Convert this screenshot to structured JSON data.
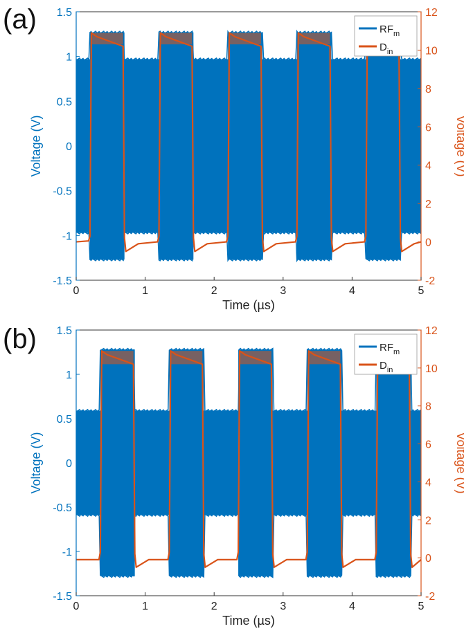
{
  "colors": {
    "rf": "#0072BD",
    "din": "#D95319",
    "axis": "#333333"
  },
  "chart_data": [
    {
      "panel_label": "(a)",
      "type": "line",
      "xlabel": "Time (µs)",
      "ylabel_left": "Voltage (V)",
      "ylabel_right": "Voltage (V)",
      "xlim": [
        0,
        5
      ],
      "ylim_left": [
        -1.5,
        1.5
      ],
      "ylim_right": [
        -2,
        12
      ],
      "xticks": [
        "0",
        "1",
        "2",
        "3",
        "4",
        "5"
      ],
      "yticks_left": [
        "-1.5",
        "-1",
        "-0.5",
        "0",
        "0.5",
        "1",
        "1.5"
      ],
      "yticks_right": [
        "-2",
        "0",
        "2",
        "4",
        "6",
        "8",
        "10",
        "12"
      ],
      "legend": [
        {
          "base": "RF",
          "sub": "m"
        },
        {
          "base": "D",
          "sub": "in"
        }
      ],
      "legend_position": "top-right",
      "pulse_starts_us": [
        0.2,
        1.2,
        2.2,
        3.2,
        4.2
      ],
      "pulse_width_us": 0.5,
      "series": [
        {
          "axis": "left",
          "envelope_off": 0.97,
          "envelope_on": 1.27
        },
        {
          "axis": "right",
          "low_level": 0.0,
          "high_level": 10.3,
          "overshoot": 10.9,
          "points": [
            [
              0,
              0
            ],
            [
              0.18,
              0.05
            ],
            [
              0.2,
              0.3
            ],
            [
              0.22,
              10.9
            ],
            [
              0.3,
              10.7
            ],
            [
              0.68,
              10.2
            ],
            [
              0.7,
              0.2
            ],
            [
              0.72,
              -0.5
            ],
            [
              0.9,
              -0.1
            ],
            [
              1.18,
              0.0
            ],
            [
              1.2,
              0.3
            ],
            [
              1.22,
              10.9
            ],
            [
              1.3,
              10.7
            ],
            [
              1.68,
              10.2
            ],
            [
              1.7,
              0.2
            ],
            [
              1.72,
              -0.5
            ],
            [
              1.9,
              -0.1
            ],
            [
              2.18,
              0.0
            ],
            [
              2.2,
              0.3
            ],
            [
              2.22,
              10.9
            ],
            [
              2.3,
              10.7
            ],
            [
              2.68,
              10.2
            ],
            [
              2.7,
              0.2
            ],
            [
              2.72,
              -0.5
            ],
            [
              2.9,
              -0.1
            ],
            [
              3.18,
              0.0
            ],
            [
              3.2,
              0.3
            ],
            [
              3.22,
              10.9
            ],
            [
              3.3,
              10.7
            ],
            [
              3.68,
              10.2
            ],
            [
              3.7,
              0.2
            ],
            [
              3.72,
              -0.5
            ],
            [
              3.9,
              -0.1
            ],
            [
              4.18,
              0.0
            ],
            [
              4.2,
              0.3
            ],
            [
              4.22,
              10.7
            ],
            [
              4.3,
              10.5
            ],
            [
              4.68,
              10.2
            ],
            [
              4.7,
              0.2
            ],
            [
              4.72,
              -0.5
            ],
            [
              4.9,
              -0.1
            ],
            [
              5.0,
              0.0
            ]
          ]
        }
      ]
    },
    {
      "panel_label": "(b)",
      "type": "line",
      "xlabel": "Time (µs)",
      "ylabel_left": "Voltage (V)",
      "ylabel_right": "Voltage (V)",
      "xlim": [
        0,
        5
      ],
      "ylim_left": [
        -1.5,
        1.5
      ],
      "ylim_right": [
        -2,
        12
      ],
      "xticks": [
        "0",
        "1",
        "2",
        "3",
        "4",
        "5"
      ],
      "yticks_left": [
        "-1.5",
        "-1",
        "-0.5",
        "0",
        "0.5",
        "1",
        "1.5"
      ],
      "yticks_right": [
        "-2",
        "0",
        "2",
        "4",
        "6",
        "8",
        "10",
        "12"
      ],
      "legend": [
        {
          "base": "RF",
          "sub": "m"
        },
        {
          "base": "D",
          "sub": "in"
        }
      ],
      "legend_position": "top-right",
      "pulse_starts_us": [
        0.35,
        1.35,
        2.35,
        3.35,
        4.35
      ],
      "pulse_width_us": 0.5,
      "series": [
        {
          "axis": "left",
          "envelope_off": 0.59,
          "envelope_on": 1.28
        },
        {
          "axis": "right",
          "low_level": 0.0,
          "high_level": 10.2,
          "overshoot": 10.9,
          "points": [
            [
              0,
              -0.1
            ],
            [
              0.33,
              -0.1
            ],
            [
              0.35,
              0.3
            ],
            [
              0.37,
              10.9
            ],
            [
              0.45,
              10.7
            ],
            [
              0.83,
              10.2
            ],
            [
              0.85,
              0.2
            ],
            [
              0.87,
              -0.5
            ],
            [
              1.05,
              -0.1
            ],
            [
              1.33,
              -0.1
            ],
            [
              1.35,
              0.3
            ],
            [
              1.37,
              10.9
            ],
            [
              1.45,
              10.7
            ],
            [
              1.83,
              10.2
            ],
            [
              1.85,
              0.2
            ],
            [
              1.87,
              -0.5
            ],
            [
              2.05,
              -0.1
            ],
            [
              2.33,
              -0.1
            ],
            [
              2.35,
              0.3
            ],
            [
              2.37,
              10.9
            ],
            [
              2.45,
              10.7
            ],
            [
              2.83,
              10.2
            ],
            [
              2.85,
              0.2
            ],
            [
              2.87,
              -0.5
            ],
            [
              3.05,
              -0.1
            ],
            [
              3.33,
              -0.1
            ],
            [
              3.35,
              0.3
            ],
            [
              3.37,
              10.9
            ],
            [
              3.45,
              10.7
            ],
            [
              3.83,
              10.2
            ],
            [
              3.85,
              0.2
            ],
            [
              3.87,
              -0.5
            ],
            [
              4.05,
              -0.1
            ],
            [
              4.33,
              -0.1
            ],
            [
              4.35,
              0.3
            ],
            [
              4.37,
              10.4
            ],
            [
              4.45,
              10.3
            ],
            [
              4.83,
              10.2
            ],
            [
              4.85,
              0.2
            ],
            [
              4.87,
              -0.5
            ],
            [
              5.0,
              -0.1
            ]
          ]
        }
      ]
    }
  ]
}
